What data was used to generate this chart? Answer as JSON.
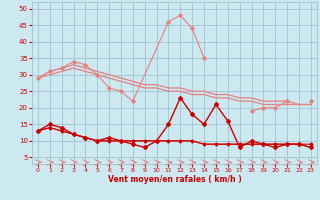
{
  "x": [
    0,
    1,
    2,
    3,
    4,
    5,
    6,
    7,
    8,
    9,
    10,
    11,
    12,
    13,
    14,
    15,
    16,
    17,
    18,
    19,
    20,
    21,
    22,
    23
  ],
  "line_upper1": [
    29,
    31,
    32,
    34,
    33,
    30,
    26,
    25,
    22,
    null,
    null,
    null,
    null,
    null,
    null,
    null,
    null,
    null,
    19,
    20,
    20,
    22,
    null,
    22
  ],
  "line_upper2": [
    29,
    31,
    32,
    33,
    32,
    31,
    30,
    29,
    28,
    27,
    27,
    26,
    26,
    25,
    25,
    24,
    24,
    23,
    23,
    22,
    22,
    22,
    21,
    21
  ],
  "line_upper3": [
    29,
    30,
    31,
    32,
    31,
    30,
    29,
    28,
    27,
    26,
    26,
    25,
    25,
    24,
    24,
    23,
    23,
    22,
    22,
    21,
    21,
    21,
    21,
    21
  ],
  "line_spike": [
    null,
    null,
    null,
    null,
    null,
    null,
    null,
    null,
    null,
    null,
    null,
    46,
    48,
    44,
    35,
    null,
    null,
    null,
    null,
    null,
    null,
    null,
    null,
    null
  ],
  "line_dark1": [
    13,
    15,
    14,
    12,
    11,
    10,
    11,
    10,
    9,
    8,
    10,
    15,
    23,
    18,
    15,
    21,
    16,
    8,
    10,
    9,
    8,
    9,
    9,
    8
  ],
  "line_dark2": [
    13,
    14,
    13,
    12,
    11,
    10,
    10,
    10,
    10,
    10,
    10,
    10,
    10,
    10,
    9,
    9,
    9,
    9,
    9,
    9,
    9,
    9,
    9,
    9
  ],
  "line_dark3": [
    13,
    14,
    13,
    12,
    11,
    10,
    10,
    10,
    10,
    10,
    10,
    10,
    10,
    10,
    9,
    9,
    9,
    9,
    9,
    9,
    9,
    9,
    9,
    8
  ],
  "bg_color": "#cce8f0",
  "grid_color": "#99bbcc",
  "light_red": "#e88080",
  "dark_red": "#cc0000",
  "xlabel": "Vent moyen/en rafales ( km/h )",
  "yticks": [
    5,
    10,
    15,
    20,
    25,
    30,
    35,
    40,
    45,
    50
  ],
  "xticks": [
    0,
    1,
    2,
    3,
    4,
    5,
    6,
    7,
    8,
    9,
    10,
    11,
    12,
    13,
    14,
    15,
    16,
    17,
    18,
    19,
    20,
    21,
    22,
    23
  ],
  "xlim": [
    -0.5,
    23.5
  ],
  "ylim": [
    3,
    52
  ]
}
